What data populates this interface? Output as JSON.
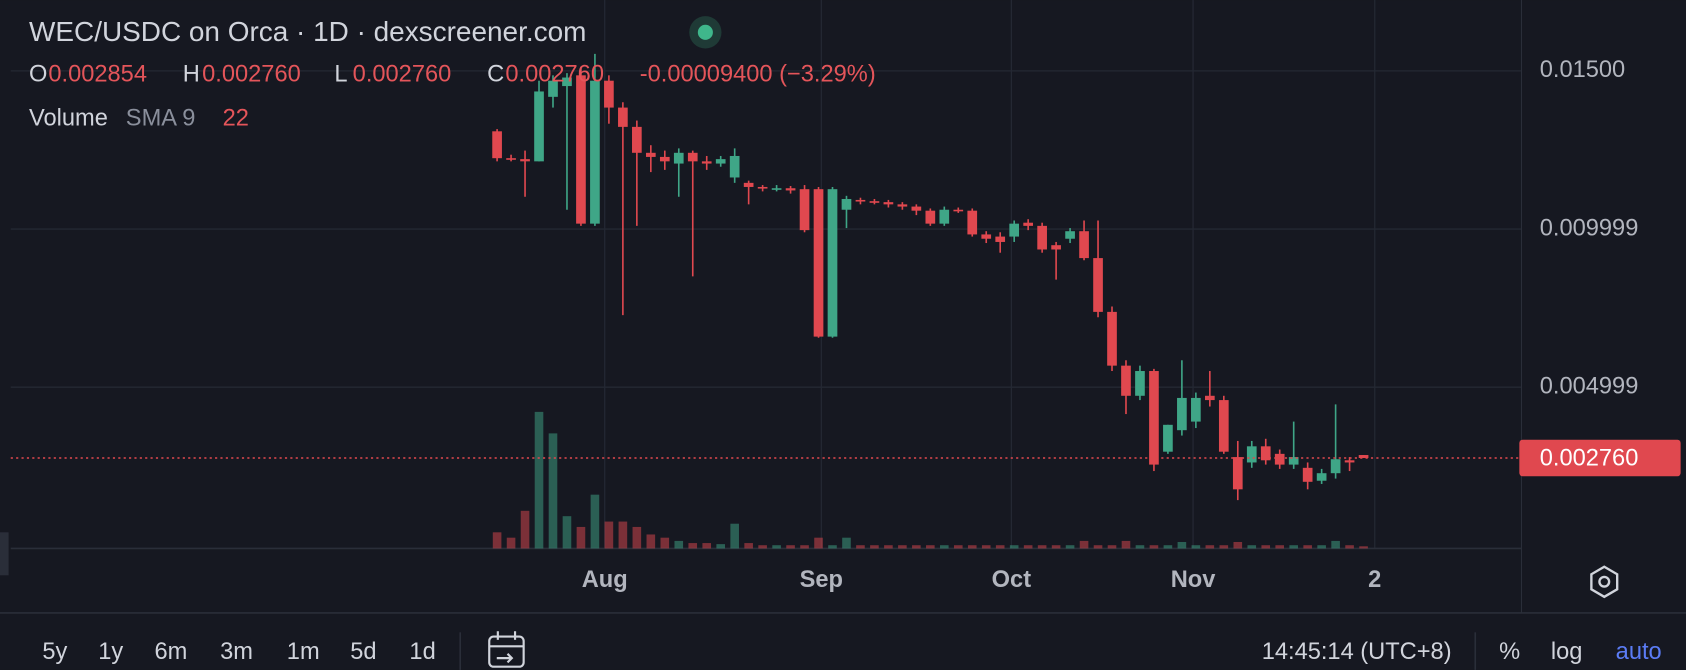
{
  "chart_data": {
    "type": "candlestick",
    "title": "WEC/USDC on Orca · 1D · dexscreener.com",
    "legend": {
      "items": [
        {
          "label": "O",
          "value": "0.002854"
        },
        {
          "label": "H",
          "value": "0.002760"
        },
        {
          "label": "L",
          "value": "0.002760"
        },
        {
          "label": "C",
          "value": "0.002760"
        }
      ],
      "change": "-0.00009400 (−3.29%)"
    },
    "volume_legend": {
      "label": "Volume",
      "indicator": "SMA 9",
      "value": "22"
    },
    "up_color": "#3fa687",
    "down_color": "#e0484f",
    "open": [
      0.01309,
      0.01224,
      0.01221,
      0.01214,
      0.01418,
      0.01452,
      0.01486,
      0.01017,
      0.01469,
      0.01384,
      0.01323,
      0.01241,
      0.01228,
      0.01207,
      0.01241,
      0.01214,
      0.01207,
      0.01163,
      0.01146,
      0.01133,
      0.01129,
      0.01129,
      0.01126,
      0.01126,
      0.006598,
      0.01061,
      0.01092,
      0.01088,
      0.01085,
      0.01078,
      0.01071,
      0.01058,
      0.01017,
      0.01061,
      0.01058,
      0.009829,
      0.009761,
      0.009761,
      0.0102,
      0.0101,
      0.009489,
      0.009693,
      0.009931,
      0.009081,
      0.00738,
      0.00568,
      0.004727,
      0.00551,
      0.002959,
      0.003639,
      0.003911,
      0.004727,
      0.004591,
      0.002789,
      0.002619,
      0.003129,
      0.002891,
      0.002551,
      0.002449,
      0.002041,
      0.002279,
      0.002687,
      0.002854
    ],
    "high": [
      0.01316,
      0.01235,
      0.01248,
      0.01469,
      0.01486,
      0.01493,
      0.01513,
      0.01554,
      0.01486,
      0.01401,
      0.01343,
      0.01265,
      0.01248,
      0.01255,
      0.01248,
      0.01231,
      0.01231,
      0.01255,
      0.01153,
      0.01139,
      0.01139,
      0.01136,
      0.01139,
      0.01133,
      0.01133,
      0.01105,
      0.01099,
      0.01095,
      0.01092,
      0.01085,
      0.01078,
      0.01065,
      0.01071,
      0.01068,
      0.01065,
      0.009931,
      0.009897,
      0.01027,
      0.01031,
      0.0102,
      0.009591,
      0.01003,
      0.01027,
      0.01027,
      0.00755,
      0.00585,
      0.00568,
      0.005578,
      0.003809,
      0.00585,
      0.004829,
      0.00551,
      0.004727,
      0.003299,
      0.003299,
      0.003367,
      0.003027,
      0.003911,
      0.002619,
      0.002415,
      0.004455,
      0.002789,
      0.002854
    ],
    "low": [
      0.01214,
      0.01214,
      0.01102,
      0.01214,
      0.01384,
      0.01061,
      0.0101,
      0.0101,
      0.01333,
      0.007278,
      0.0101,
      0.0118,
      0.01187,
      0.01102,
      0.008503,
      0.01187,
      0.01197,
      0.01146,
      0.01078,
      0.01119,
      0.01119,
      0.01112,
      0.009897,
      0.006564,
      0.006564,
      0.01003,
      0.01078,
      0.01078,
      0.01068,
      0.01061,
      0.01044,
      0.0101,
      0.0101,
      0.01051,
      0.009761,
      0.009557,
      0.009251,
      0.009591,
      0.009965,
      0.009251,
      0.0084,
      0.009557,
      0.009013,
      0.00721,
      0.00551,
      0.004149,
      0.004591,
      0.002347,
      0.002891,
      0.003469,
      0.003707,
      0.004387,
      0.002891,
      0.001428,
      0.002449,
      0.002551,
      0.002415,
      0.002415,
      0.001769,
      0.001939,
      0.002109,
      0.002347,
      0.00276
    ],
    "close": [
      0.01224,
      0.01221,
      0.01214,
      0.01435,
      0.01469,
      0.01479,
      0.01017,
      0.01469,
      0.01384,
      0.01323,
      0.01241,
      0.01228,
      0.01214,
      0.01241,
      0.01214,
      0.01207,
      0.01221,
      0.01231,
      0.01133,
      0.01129,
      0.01129,
      0.01122,
      0.009965,
      0.006598,
      0.01126,
      0.01095,
      0.01088,
      0.01085,
      0.01078,
      0.01071,
      0.01058,
      0.01017,
      0.01061,
      0.01058,
      0.009829,
      0.009693,
      0.009591,
      0.01017,
      0.0101,
      0.009353,
      0.009353,
      0.009931,
      0.009081,
      0.00738,
      0.00568,
      0.004727,
      0.00551,
      0.002551,
      0.003809,
      0.004659,
      0.004659,
      0.004591,
      0.002959,
      0.001769,
      0.003129,
      0.002687,
      0.002551,
      0.002789,
      0.002007,
      0.002279,
      0.002721,
      0.002619,
      0.00276
    ],
    "volume": [
      30,
      20,
      70,
      254,
      214,
      60,
      40,
      100,
      50,
      50,
      40,
      26,
      20,
      14,
      10,
      10,
      8,
      46,
      10,
      6,
      6,
      6,
      6,
      20,
      6,
      20,
      6,
      6,
      6,
      6,
      6,
      6,
      6,
      6,
      6,
      6,
      6,
      6,
      6,
      6,
      6,
      6,
      14,
      6,
      6,
      14,
      6,
      6,
      6,
      12,
      6,
      6,
      6,
      12,
      6,
      6,
      6,
      6,
      6,
      6,
      14,
      6,
      4
    ],
    "volume_ylim": [
      0,
      1020
    ],
    "xlim": [
      -34.8,
      73.3
    ],
    "xticks": [
      {
        "value": 7.7,
        "label": "Aug"
      },
      {
        "value": 23.2,
        "label": "Sep"
      },
      {
        "value": 36.8,
        "label": "Oct"
      },
      {
        "value": 49.8,
        "label": "Nov"
      },
      {
        "value": 62.8,
        "label": "2"
      }
    ],
    "ylim": [
      -0.0001,
      0.01724
    ],
    "yticks": [
      {
        "value": 0.015,
        "label": "0.01500"
      },
      0.009999,
      0.004999
    ],
    "last_price": {
      "value": 0.00276,
      "label": "0.002760"
    },
    "grid": true
  },
  "toolbar": {
    "ranges": [
      "5y",
      "1y",
      "6m",
      "3m",
      "1m",
      "5d",
      "1d"
    ],
    "clock": "14:45:14 (UTC+8)",
    "percent": "%",
    "log": "log",
    "auto": "auto"
  }
}
